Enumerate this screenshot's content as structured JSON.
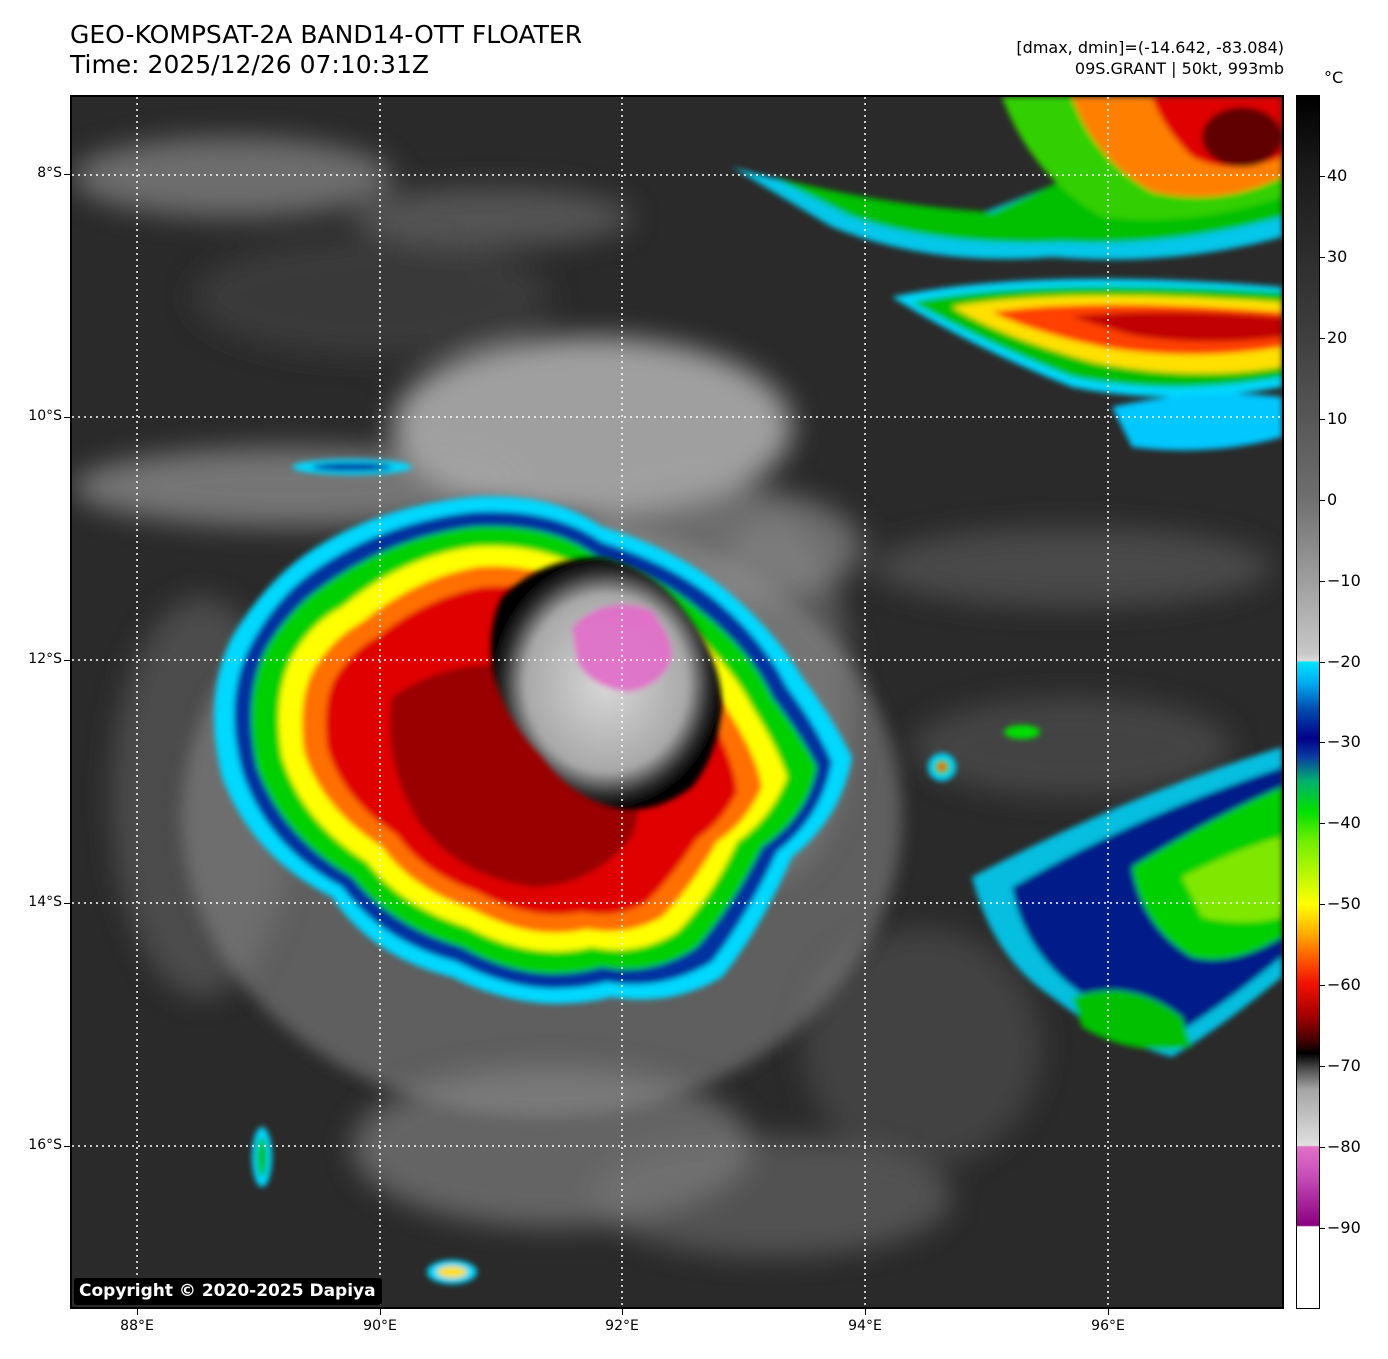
{
  "header": {
    "title_line1": "GEO-KOMPSAT-2A BAND14-OTT FLOATER",
    "title_line2": "Time: 2025/12/26 07:10:31Z",
    "meta_line1": "[dmax, dmin]=(-14.642, -83.084)",
    "meta_line2": "09S.GRANT | 50kt, 993mb"
  },
  "map": {
    "latitude_labels": [
      "8°S",
      "10°S",
      "12°S",
      "14°S",
      "16°S"
    ],
    "longitude_labels": [
      "88°E",
      "90°E",
      "92°E",
      "94°E",
      "96°E"
    ],
    "copyright": "Copyright © 2020-2025 Dapiya"
  },
  "colorbar": {
    "unit": "°C",
    "ticks": [
      "40",
      "30",
      "20",
      "10",
      "0",
      "−10",
      "−20",
      "−30",
      "−40",
      "−50",
      "−60",
      "−70",
      "−80",
      "−90"
    ],
    "range": [
      -100,
      50
    ]
  },
  "colors": {
    "cold_pink": "#e070c8",
    "deep_red": "#c00000",
    "yellow": "#ffff00",
    "green": "#00e000",
    "cyan": "#00e4ff"
  }
}
